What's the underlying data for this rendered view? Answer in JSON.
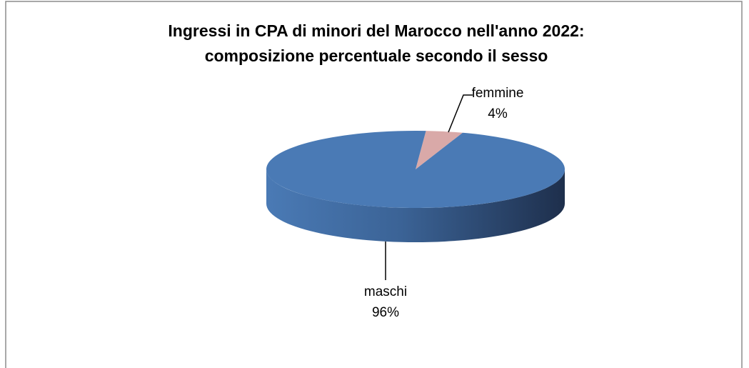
{
  "chart_data": {
    "type": "pie",
    "title": "Ingressi in CPA di minori del Marocco nell'anno 2022:",
    "subtitle": "composizione percentuale secondo il sesso",
    "categories": [
      "femmine",
      "maschi"
    ],
    "values": [
      4,
      96
    ],
    "value_labels": [
      "4%",
      "96%"
    ],
    "colors": [
      "#d9a9a8",
      "#4a7ab5"
    ]
  }
}
